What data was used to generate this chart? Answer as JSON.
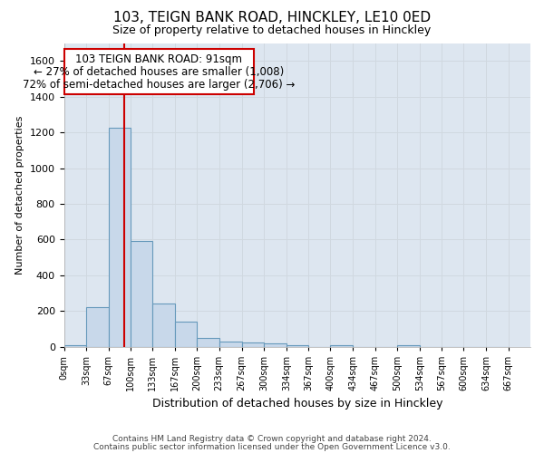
{
  "title": "103, TEIGN BANK ROAD, HINCKLEY, LE10 0ED",
  "subtitle": "Size of property relative to detached houses in Hinckley",
  "xlabel": "Distribution of detached houses by size in Hinckley",
  "ylabel": "Number of detached properties",
  "footer_line1": "Contains HM Land Registry data © Crown copyright and database right 2024.",
  "footer_line2": "Contains public sector information licensed under the Open Government Licence v3.0.",
  "bar_color": "#c8d8ea",
  "bar_edge_color": "#6699bb",
  "grid_color": "#d0d8e0",
  "bg_color": "#dde6f0",
  "annotation_box_color": "#cc0000",
  "vline_color": "#cc0000",
  "annotation_text_line1": "103 TEIGN BANK ROAD: 91sqm",
  "annotation_text_line2": "← 27% of detached houses are smaller (1,008)",
  "annotation_text_line3": "72% of semi-detached houses are larger (2,706) →",
  "property_size_sqm": 91,
  "ylim": [
    0,
    1700
  ],
  "yticks": [
    0,
    200,
    400,
    600,
    800,
    1000,
    1200,
    1400,
    1600
  ],
  "bin_edges": [
    0,
    33,
    67,
    100,
    133,
    167,
    200,
    233,
    267,
    300,
    334,
    367,
    400,
    434,
    467,
    500,
    534,
    567,
    600,
    634,
    667
  ],
  "bar_heights": [
    10,
    220,
    1225,
    590,
    240,
    140,
    50,
    30,
    25,
    20,
    10,
    0,
    10,
    0,
    0,
    10,
    0,
    0,
    0,
    0
  ],
  "title_fontsize": 11,
  "subtitle_fontsize": 9,
  "ylabel_fontsize": 8,
  "xlabel_fontsize": 9,
  "ytick_fontsize": 8,
  "xtick_fontsize": 7
}
